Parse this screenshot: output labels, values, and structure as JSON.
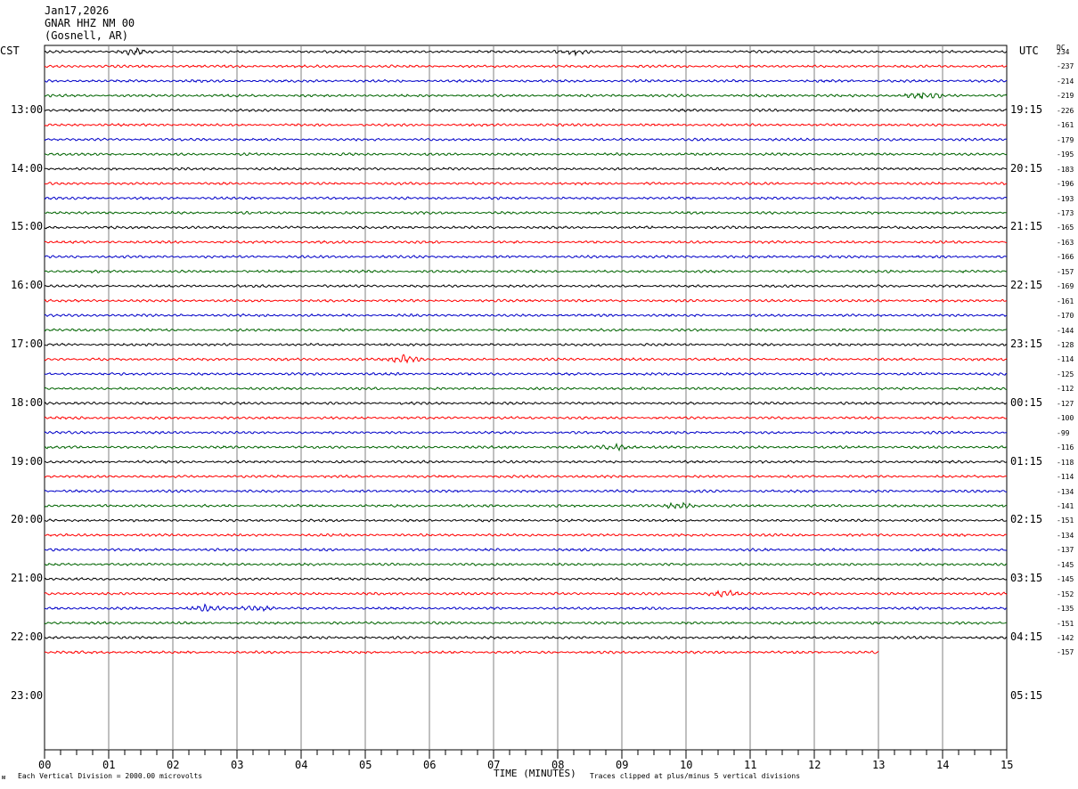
{
  "header": {
    "date": "Jan17,2026",
    "station": "GNAR HHZ NM 00",
    "location": "(Gosnell, AR)"
  },
  "left_tz": "CST",
  "right_tz": "UTC",
  "dc_label": "DC",
  "footer": {
    "scale_note": "Each Vertical Division = 2000.00 microvolts",
    "xlabel": "TIME (MINUTES)",
    "clip_note": "Traces clipped at plus/minus 5 vertical divisions",
    "corner_mark": "ᴍ"
  },
  "colors": {
    "trace_cycle": [
      "#000000",
      "#ff0000",
      "#0000c8",
      "#006400"
    ],
    "grid": "#808080"
  },
  "chart_data": {
    "type": "helicorder",
    "xlim": [
      0,
      15
    ],
    "x_tick_labels": [
      "00",
      "01",
      "02",
      "03",
      "04",
      "05",
      "06",
      "07",
      "08",
      "09",
      "10",
      "11",
      "12",
      "13",
      "14",
      "15"
    ],
    "minor_ticks_per_minute": 4,
    "rows_per_hour": 4,
    "total_rows": 48,
    "left_hour_labels": [
      "13:00",
      "14:00",
      "15:00",
      "16:00",
      "17:00",
      "18:00",
      "19:00",
      "20:00",
      "21:00",
      "22:00",
      "23:00"
    ],
    "right_hour_labels": [
      "19:15",
      "20:15",
      "21:15",
      "22:15",
      "23:15",
      "00:15",
      "01:15",
      "02:15",
      "03:15",
      "04:15",
      "05:15"
    ],
    "traces": [
      {
        "dc": "234",
        "end_minute": 15
      },
      {
        "dc": "-237",
        "end_minute": 15
      },
      {
        "dc": "-214",
        "end_minute": 15
      },
      {
        "dc": "-219",
        "end_minute": 15
      },
      {
        "dc": "-226",
        "end_minute": 15
      },
      {
        "dc": "-161",
        "end_minute": 15
      },
      {
        "dc": "-179",
        "end_minute": 15
      },
      {
        "dc": "-195",
        "end_minute": 15
      },
      {
        "dc": "-183",
        "end_minute": 15
      },
      {
        "dc": "-196",
        "end_minute": 15
      },
      {
        "dc": "-193",
        "end_minute": 15
      },
      {
        "dc": "-173",
        "end_minute": 15
      },
      {
        "dc": "-165",
        "end_minute": 15
      },
      {
        "dc": "-163",
        "end_minute": 15
      },
      {
        "dc": "-166",
        "end_minute": 15
      },
      {
        "dc": "-157",
        "end_minute": 15
      },
      {
        "dc": "-169",
        "end_minute": 15
      },
      {
        "dc": "-161",
        "end_minute": 15
      },
      {
        "dc": "-170",
        "end_minute": 15
      },
      {
        "dc": "-144",
        "end_minute": 15
      },
      {
        "dc": "-128",
        "end_minute": 15
      },
      {
        "dc": "-114",
        "end_minute": 15
      },
      {
        "dc": "-125",
        "end_minute": 15
      },
      {
        "dc": "-112",
        "end_minute": 15
      },
      {
        "dc": "-127",
        "end_minute": 15
      },
      {
        "dc": "-100",
        "end_minute": 15
      },
      {
        "dc": "-99",
        "end_minute": 15
      },
      {
        "dc": "-116",
        "end_minute": 15
      },
      {
        "dc": "-118",
        "end_minute": 15
      },
      {
        "dc": "-114",
        "end_minute": 15
      },
      {
        "dc": "-134",
        "end_minute": 15
      },
      {
        "dc": "-141",
        "end_minute": 15
      },
      {
        "dc": "-151",
        "end_minute": 15
      },
      {
        "dc": "-134",
        "end_minute": 15
      },
      {
        "dc": "-137",
        "end_minute": 15
      },
      {
        "dc": "-145",
        "end_minute": 15
      },
      {
        "dc": "-145",
        "end_minute": 15
      },
      {
        "dc": "-152",
        "end_minute": 15
      },
      {
        "dc": "-135",
        "end_minute": 15
      },
      {
        "dc": "-151",
        "end_minute": 15
      },
      {
        "dc": "-142",
        "end_minute": 15
      },
      {
        "dc": "-157",
        "end_minute": 13
      }
    ],
    "events": [
      {
        "row": 0,
        "minute": 1.4,
        "amp": 3
      },
      {
        "row": 0,
        "minute": 8.2,
        "amp": 3
      },
      {
        "row": 3,
        "minute": 13.7,
        "amp": 4
      },
      {
        "row": 21,
        "minute": 5.6,
        "amp": 4
      },
      {
        "row": 27,
        "minute": 8.9,
        "amp": 3
      },
      {
        "row": 31,
        "minute": 9.9,
        "amp": 3
      },
      {
        "row": 37,
        "minute": 10.6,
        "amp": 4
      },
      {
        "row": 38,
        "minute": 2.5,
        "amp": 3
      },
      {
        "row": 38,
        "minute": 3.3,
        "amp": 3
      }
    ]
  }
}
